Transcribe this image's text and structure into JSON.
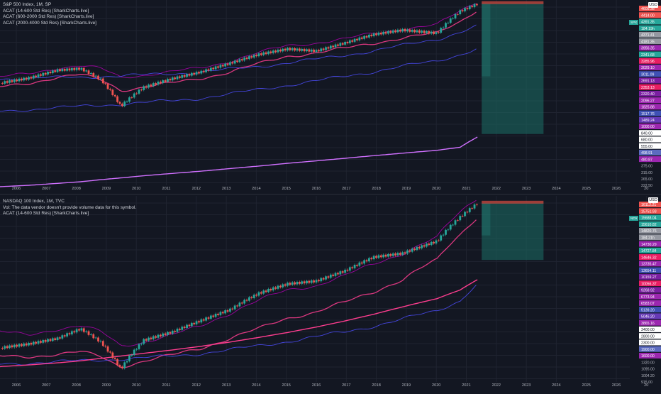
{
  "colors": {
    "background": "#131722",
    "grid": "#1f2330",
    "candle_up": "#26a69a",
    "candle_down": "#ef5350",
    "band_magenta": "#b400b4",
    "band_pink": "#ff3d8f",
    "band_blue": "#4d4dff",
    "band_violet": "#d070ff",
    "projection_fill": "#1c6f66",
    "projection_top": "#c0473f",
    "axis_text": "#b2b5be"
  },
  "time_axis": [
    "2006",
    "2007",
    "2008",
    "2009",
    "2010",
    "2011",
    "2012",
    "2013",
    "2014",
    "2015",
    "2016",
    "2017",
    "2018",
    "2019",
    "2020",
    "2021",
    "2022",
    "2023",
    "2024",
    "2025",
    "2026",
    "20"
  ],
  "currency_label": "USD",
  "chart_data": [
    {
      "type": "line",
      "title": "S&P 500 Index, 1M, SP",
      "indicators": [
        "ACAT (14-600 Std Res) [SharkCharts.live]",
        "ACAT (600-2000 Std Res) [SharkCharts.live]",
        "ACAT (2000-4000 Std Res) [SharkCharts.live]"
      ],
      "symbol_tag": "SPX",
      "y_scale": "log",
      "ylim": [
        215,
        4700
      ],
      "y_ticks": [
        "4605.38",
        "4414.00",
        "4391.35",
        "184:19h",
        "4371.41",
        "4181.35",
        "3956.35",
        "2341.68",
        "3285.96",
        "3029.10",
        "3011.09",
        "2691.13",
        "2353.13",
        "2320.40",
        "2096.27",
        "1825.88",
        "1517.76",
        "1489.24",
        "1000.00",
        "840.00",
        "680.00",
        "555.00",
        "498.91",
        "480.87",
        "375.00",
        "315.00",
        "265.00",
        "222.50"
      ],
      "x": [
        2005,
        2006,
        2007,
        2007.8,
        2008.5,
        2009.2,
        2010,
        2011,
        2012,
        2013,
        2014,
        2015,
        2016,
        2017,
        2018,
        2019,
        2020.2,
        2021,
        2021.6
      ],
      "series": [
        {
          "values": [
            1180,
            1280,
            1460,
            1500,
            1250,
            800,
            1100,
            1270,
            1420,
            1640,
            1900,
            2080,
            2010,
            2300,
            2650,
            2850,
            2700,
            3900,
            4400
          ]
        }
      ],
      "bands": [
        {
          "values": [
            1300,
            1380,
            1520,
            1560,
            1500,
            1300,
            1350,
            1420,
            1520,
            1700,
            1950,
            2200,
            2300,
            2450,
            2700,
            2900,
            3100,
            3900,
            4600
          ]
        },
        {
          "values": [
            1100,
            1180,
            1300,
            1350,
            1250,
            1050,
            1100,
            1180,
            1280,
            1420,
            1620,
            1850,
            1950,
            2100,
            2300,
            2500,
            2700,
            3300,
            4000
          ]
        },
        {
          "values": [
            740,
            760,
            780,
            800,
            820,
            830,
            850,
            880,
            920,
            980,
            1060,
            1140,
            1220,
            1320,
            1430,
            1560,
            1700,
            1900,
            2100
          ]
        },
        {
          "values": [
            1270,
            1280,
            1290,
            1300,
            1320,
            1330,
            1350,
            1380,
            1420,
            1480,
            1560,
            1650,
            1750,
            1880,
            2020,
            2200,
            2450,
            2750,
            3050
          ]
        }
      ],
      "support_line": {
        "values": [
          210,
          215,
          222,
          228,
          236,
          243,
          252,
          262,
          272,
          284,
          296,
          310,
          323,
          337,
          352,
          367,
          385,
          405,
          480
        ]
      },
      "projection": {
        "from_year": 2021.75,
        "to_year": 2023.9,
        "upper": 4605.38,
        "lower": 505
      }
    },
    {
      "type": "line",
      "title": "NASDAQ 100 Index, 1M, TVC",
      "indicators": [
        "Vol: The data vendor doesn't provide volume data for this symbol.",
        "ACAT (14-600 Std Res) [SharkCharts.live]"
      ],
      "symbol_tag": "NDX",
      "y_scale": "log",
      "ylim": [
        900,
        17500
      ],
      "y_ticks": [
        "16112.21",
        "15751.93",
        "15688.04",
        "15610.82",
        "14820.76",
        "184:21h",
        "14730.29",
        "14727.84",
        "14646.32",
        "13735.47",
        "13654.11",
        "10159.27",
        "10056.37",
        "9268.92",
        "6773.94",
        "6583.07",
        "5139.20",
        "5046.20",
        "3865.16",
        "3400.00",
        "2800.00",
        "2300.00",
        "1900.00",
        "1600.00",
        "1320.00",
        "1095.00",
        "1004.20",
        "915.00"
      ],
      "x": [
        2005,
        2006,
        2007,
        2007.8,
        2008.5,
        2009.2,
        2010,
        2011,
        2012,
        2013,
        2014,
        2015,
        2016,
        2017,
        2018,
        2019,
        2020.2,
        2021,
        2021.6
      ],
      "series": [
        {
          "values": [
            1550,
            1650,
            1800,
            2100,
            1700,
            1100,
            1750,
            2000,
            2400,
            2850,
            3700,
            4300,
            4500,
            5300,
            6600,
            7000,
            8500,
            12500,
            15500
          ]
        }
      ],
      "bands": [
        {
          "values": [
            2000,
            1900,
            2100,
            2200,
            2000,
            1600,
            1700,
            1900,
            2200,
            2700,
            3300,
            3900,
            4200,
            4900,
            5900,
            7000,
            9000,
            13500,
            17000
          ]
        },
        {
          "values": [
            1350,
            1350,
            1400,
            1450,
            1350,
            1150,
            1250,
            1380,
            1550,
            1800,
            2100,
            2500,
            2750,
            3200,
            3800,
            4600,
            6300,
            9500,
            12500
          ]
        },
        {
          "values": [
            1200,
            1220,
            1240,
            1260,
            1280,
            1300,
            1320,
            1360,
            1420,
            1500,
            1600,
            1720,
            1850,
            2000,
            2200,
            2450,
            2800,
            3300,
            4300
          ]
        }
      ],
      "support_line": {
        "values": [
          1150,
          1180,
          1220,
          1260,
          1310,
          1360,
          1420,
          1500,
          1590,
          1700,
          1830,
          1980,
          2160,
          2380,
          2650,
          2980,
          3400,
          3900,
          4600
        ]
      },
      "projection": {
        "from_year": 2021.75,
        "to_year": 2023.9,
        "upper": 16200,
        "lower": 6300
      }
    }
  ]
}
